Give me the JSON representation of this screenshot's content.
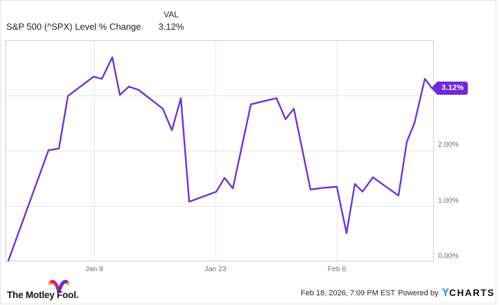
{
  "header": {
    "title": "S&P 500 (^SPX) Level % Change",
    "val_label": "VAL",
    "val_value": "3.12%"
  },
  "badge": {
    "label": "3.12%",
    "bg_color": "#7128d8"
  },
  "colors": {
    "line": "#6936d3",
    "grid": "#e5e5e5",
    "plot_border": "#cfcfcf",
    "tick_text": "#6f6f6f",
    "ycharts_blue": "#14a0e8"
  },
  "chart_data": {
    "type": "line",
    "title": "S&P 500 (^SPX) Level % Change",
    "series_name": "S&P 500 (^SPX) Level % Change",
    "unit": "%",
    "ylim": [
      0,
      4
    ],
    "grid": true,
    "legend_position": "none",
    "y_ticks": [
      {
        "label": "0.00%",
        "value": 0
      },
      {
        "label": "1.00%",
        "value": 1
      },
      {
        "label": "2.00%",
        "value": 2
      },
      {
        "label": "3.00%",
        "value": 3,
        "covered_by_badge": true
      }
    ],
    "x_ticks": [
      {
        "label": "Jan 9",
        "x": 128
      },
      {
        "label": "Jan 23",
        "x": 303
      },
      {
        "label": "Feb 6",
        "x": 478
      }
    ],
    "points": [
      {
        "date": "Dec 30",
        "x": 4,
        "value": 0.01
      },
      {
        "date": "Jan 4",
        "x": 62,
        "value": 2.01
      },
      {
        "date": "Jan 5",
        "x": 77,
        "value": 2.04
      },
      {
        "date": "Jan 6",
        "x": 90,
        "value": 2.99
      },
      {
        "date": "Jan 8",
        "x": 109,
        "value": 3.17
      },
      {
        "date": "Jan 9",
        "x": 127,
        "value": 3.34
      },
      {
        "date": "Jan 10",
        "x": 139,
        "value": 3.3
      },
      {
        "date": "Jan 12",
        "x": 154,
        "value": 3.69
      },
      {
        "date": "Jan 13",
        "x": 165,
        "value": 3.01
      },
      {
        "date": "Jan 14",
        "x": 178,
        "value": 3.16
      },
      {
        "date": "Jan 15",
        "x": 192,
        "value": 3.1
      },
      {
        "date": "Jan 17",
        "x": 227,
        "value": 2.76
      },
      {
        "date": "Jan 18",
        "x": 240,
        "value": 2.37
      },
      {
        "date": "Jan 19",
        "x": 253,
        "value": 2.95
      },
      {
        "date": "Jan 20",
        "x": 265,
        "value": 1.08
      },
      {
        "date": "Jan 23",
        "x": 304,
        "value": 1.26
      },
      {
        "date": "Jan 24",
        "x": 316,
        "value": 1.51
      },
      {
        "date": "Jan 25",
        "x": 328,
        "value": 1.32
      },
      {
        "date": "Jan 27",
        "x": 354,
        "value": 2.84
      },
      {
        "date": "Jan 30",
        "x": 391,
        "value": 2.95
      },
      {
        "date": "Jan 31",
        "x": 404,
        "value": 2.57
      },
      {
        "date": "Feb 1",
        "x": 416,
        "value": 2.76
      },
      {
        "date": "Feb 3",
        "x": 440,
        "value": 1.3
      },
      {
        "date": "Feb 4",
        "x": 459,
        "value": 1.33
      },
      {
        "date": "Feb 6",
        "x": 478,
        "value": 1.35
      },
      {
        "date": "Feb 7",
        "x": 492,
        "value": 0.51
      },
      {
        "date": "Feb 8",
        "x": 504,
        "value": 1.4
      },
      {
        "date": "Feb 9",
        "x": 515,
        "value": 1.26
      },
      {
        "date": "Feb 10",
        "x": 530,
        "value": 1.52
      },
      {
        "date": "Feb 13",
        "x": 567,
        "value": 1.19
      },
      {
        "date": "Feb 14",
        "x": 579,
        "value": 2.16
      },
      {
        "date": "Feb 15",
        "x": 590,
        "value": 2.5
      },
      {
        "date": "Feb 17",
        "x": 605,
        "value": 3.3
      },
      {
        "date": "Feb 18",
        "x": 616,
        "value": 3.12
      }
    ]
  },
  "footer": {
    "brand": "The Motley Fool.",
    "timestamp": "Feb 18, 2026, 7:09 PM EST",
    "powered_by": "Powered by",
    "ycharts_y": "Y",
    "ycharts_rest": "CHARTS"
  }
}
